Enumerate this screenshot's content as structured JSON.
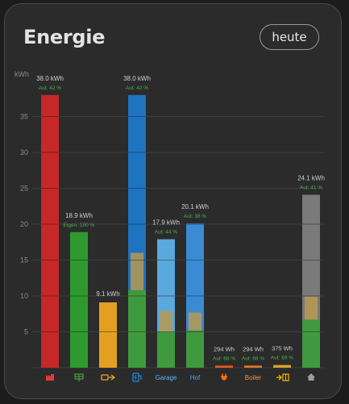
{
  "card": {
    "title": "Energie",
    "period_button": "heute"
  },
  "chart_data": {
    "type": "bar",
    "ylabel": "kWh",
    "ylim": [
      0,
      38
    ],
    "yticks": [
      5,
      10,
      15,
      20,
      25,
      30,
      35
    ],
    "grid": true,
    "bars": [
      {
        "icon": "factory-icon",
        "label": "",
        "value_kwh": 38.0,
        "value_text": "38.0 kWh",
        "sub_text": "Aut: 42 %",
        "color": "#c62828",
        "sub_color": "#4caf50",
        "label_color": "#e53935"
      },
      {
        "icon": "solar-panel-icon",
        "label": "",
        "value_kwh": 18.9,
        "value_text": "18.9 kWh",
        "sub_text": "Eigen: 100 %",
        "color": "#2e9a2e",
        "sub_color": "#4caf50",
        "label_color": "#43a047"
      },
      {
        "icon": "battery-export-icon",
        "label": "",
        "value_kwh": 9.1,
        "value_text": "9.1 kWh",
        "sub_text": "",
        "color": "#e3a020",
        "sub_color": "#4caf50",
        "label_color": "#f0a71e"
      },
      {
        "icon": "ev-charger-icon",
        "label": "",
        "value_kwh": 38.0,
        "value_text": "38.0 kWh",
        "sub_text": "Aut: 42 %",
        "color": "#1e74c0",
        "sub_color": "#4caf50",
        "label_color": "#1e88e5",
        "overlay_top": 16.0,
        "overlay_bottom": 10.8,
        "green_top": 10.8
      },
      {
        "icon": "",
        "label": "Garage",
        "value_kwh": 17.9,
        "value_text": "17.9 kWh",
        "sub_text": "Aut: 44 %",
        "color": "#5aa9de",
        "sub_color": "#4caf50",
        "label_color": "#64b5f6",
        "overlay_top": 7.9,
        "overlay_bottom": 5.0,
        "green_top": 5.0
      },
      {
        "icon": "",
        "label": "Hof",
        "value_kwh": 20.1,
        "value_text": "20.1 kWh",
        "sub_text": "Aut: 38 %",
        "color": "#3b8ad4",
        "sub_color": "#4caf50",
        "label_color": "#42a5f5",
        "overlay_top": 7.7,
        "overlay_bottom": 5.2,
        "green_top": 5.2
      },
      {
        "icon": "plug-icon",
        "label": "",
        "value_kwh": 0.294,
        "value_text": "294 Wh",
        "sub_text": "Aut: 68 %",
        "color": "#e65a1e",
        "sub_color": "#4caf50",
        "label_color": "#ff6d00"
      },
      {
        "icon": "",
        "label": "Boiler",
        "value_kwh": 0.294,
        "value_text": "294 Wh",
        "sub_text": "Aut: 68 %",
        "color": "#e07a28",
        "sub_color": "#4caf50",
        "label_color": "#ff8f3a"
      },
      {
        "icon": "heater-icon",
        "label": "",
        "value_kwh": 0.375,
        "value_text": "375 Wh",
        "sub_text": "Aut: 69 %",
        "color": "#d9a52a",
        "sub_color": "#4caf50",
        "label_color": "#ffb300"
      },
      {
        "icon": "home-icon",
        "label": "",
        "value_kwh": 24.1,
        "value_text": "24.1 kWh",
        "sub_text": "Aut: 41 %",
        "color": "#7a7a7a",
        "sub_color": "#4caf50",
        "label_color": "#9e9e9e",
        "overlay_top": 9.9,
        "overlay_bottom": 6.7,
        "green_top": 6.7
      }
    ]
  },
  "colors": {
    "overlay": "#b89a52",
    "green": "#3f9a3f",
    "segment_line": "#1a1a1a",
    "grid": "#3c3c3c",
    "tick": "#8a8a8a"
  }
}
